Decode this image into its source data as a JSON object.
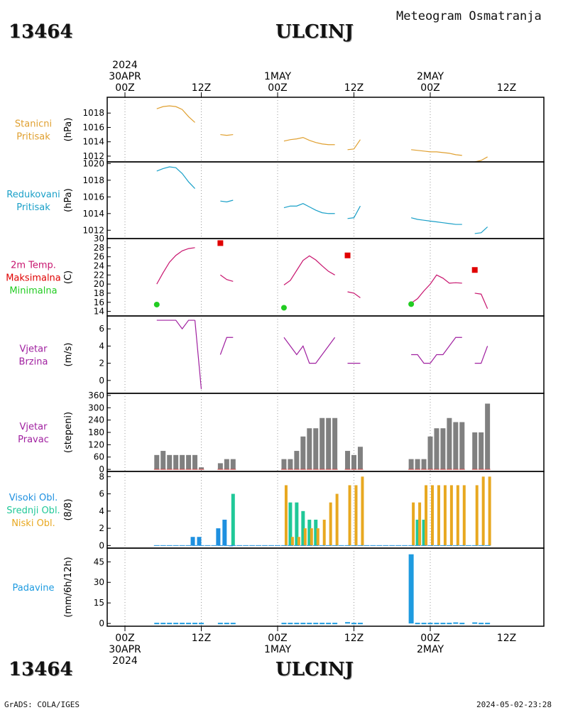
{
  "header": {
    "station_id": "13464",
    "city": "ULCINJ",
    "title": "Meteogram Osmatranja"
  },
  "footer": {
    "station_id": "13464",
    "city": "ULCINJ",
    "source": "GrADS: COLA/IGES",
    "timestamp": "2024-05-02-23:28"
  },
  "colors": {
    "station_pressure": "#e0a030",
    "reduced_pressure": "#1aa0c8",
    "tmax": "#e00000",
    "tmin": "#22cc22",
    "temp_line": "#c8146e",
    "wind": "#a020a0",
    "direction_bars": "#808080",
    "high_clouds": "#1e90e0",
    "mid_clouds": "#20c898",
    "low_clouds": "#e8a820",
    "precip": "#1e9be0"
  },
  "chart_data": [
    {
      "type": "line",
      "panel": "station_pressure",
      "label_lines": [
        "Stanicni",
        "Pritisak"
      ],
      "ylabel": "(hPa)",
      "ylim": [
        1011.2,
        1020.2
      ],
      "ticks": [
        1012,
        1014,
        1016,
        1018
      ],
      "x_unit": "hours since 30APR 00Z",
      "segments": [
        {
          "x": [
            5,
            6,
            7,
            8,
            9,
            10,
            11
          ],
          "y": [
            1018.6,
            1018.9,
            1019.0,
            1018.9,
            1018.5,
            1017.5,
            1016.7
          ]
        },
        {
          "x": [
            15,
            16,
            17
          ],
          "y": [
            1015.0,
            1014.9,
            1015.0
          ]
        },
        {
          "x": [
            25,
            26,
            27,
            28,
            29,
            30,
            31,
            32,
            33
          ],
          "y": [
            1014.1,
            1014.3,
            1014.4,
            1014.6,
            1014.2,
            1013.9,
            1013.7,
            1013.6,
            1013.6
          ]
        },
        {
          "x": [
            35,
            36,
            37
          ],
          "y": [
            1012.9,
            1013.0,
            1014.3
          ]
        },
        {
          "x": [
            45,
            46,
            47,
            48,
            49,
            50,
            51,
            52,
            53
          ],
          "y": [
            1012.9,
            1012.8,
            1012.7,
            1012.6,
            1012.6,
            1012.5,
            1012.4,
            1012.2,
            1012.1
          ]
        },
        {
          "x": [
            55,
            56,
            57
          ],
          "y": [
            1011.2,
            1011.4,
            1011.9
          ]
        }
      ]
    },
    {
      "type": "line",
      "panel": "reduced_pressure",
      "label_lines": [
        "Redukovani",
        "Pritisak"
      ],
      "ylabel": "(hPa)",
      "ylim": [
        1011.0,
        1020.2
      ],
      "ticks": [
        1012,
        1014,
        1016,
        1018,
        1020
      ],
      "x_unit": "hours since 30APR 00Z",
      "segments": [
        {
          "x": [
            5,
            6,
            7,
            8,
            9,
            10,
            11
          ],
          "y": [
            1019.1,
            1019.4,
            1019.6,
            1019.5,
            1018.8,
            1017.8,
            1017.0
          ]
        },
        {
          "x": [
            15,
            16,
            17
          ],
          "y": [
            1015.5,
            1015.4,
            1015.6
          ]
        },
        {
          "x": [
            25,
            26,
            27,
            28,
            29,
            30,
            31,
            32,
            33
          ],
          "y": [
            1014.7,
            1014.9,
            1014.9,
            1015.2,
            1014.8,
            1014.4,
            1014.1,
            1014.0,
            1014.0
          ]
        },
        {
          "x": [
            35,
            36,
            37
          ],
          "y": [
            1013.4,
            1013.5,
            1014.9
          ]
        },
        {
          "x": [
            45,
            46,
            47,
            48,
            49,
            50,
            51,
            52,
            53
          ],
          "y": [
            1013.5,
            1013.3,
            1013.2,
            1013.1,
            1013.0,
            1012.9,
            1012.8,
            1012.7,
            1012.7
          ]
        },
        {
          "x": [
            55,
            56,
            57
          ],
          "y": [
            1011.6,
            1011.7,
            1012.4
          ]
        }
      ]
    },
    {
      "type": "line",
      "panel": "temperature",
      "label_lines": [
        "2m Temp.",
        "Maksimalna",
        "Minimalna"
      ],
      "ylabel": "(C)",
      "ylim": [
        13,
        30
      ],
      "ticks": [
        14,
        16,
        18,
        20,
        22,
        24,
        26,
        28,
        30
      ],
      "x_unit": "hours since 30APR 00Z",
      "segments": [
        {
          "x": [
            5,
            6,
            7,
            8,
            9,
            10,
            11
          ],
          "y": [
            20.0,
            22.5,
            24.8,
            26.3,
            27.3,
            27.8,
            28.0
          ]
        },
        {
          "x": [
            15,
            16,
            17
          ],
          "y": [
            22.0,
            21.0,
            20.6
          ]
        },
        {
          "x": [
            25,
            26,
            27,
            28,
            29,
            30,
            31,
            32,
            33
          ],
          "y": [
            19.8,
            20.8,
            23.0,
            25.2,
            26.2,
            25.3,
            24.0,
            22.8,
            22.0
          ]
        },
        {
          "x": [
            35,
            36,
            37
          ],
          "y": [
            18.3,
            18.0,
            17.0
          ]
        },
        {
          "x": [
            45,
            46,
            47,
            48,
            49,
            50,
            51,
            52,
            53
          ],
          "y": [
            15.8,
            16.8,
            18.5,
            20.0,
            22.0,
            21.3,
            20.2,
            20.3,
            20.2
          ]
        },
        {
          "x": [
            55,
            56,
            57
          ],
          "y": [
            18.0,
            17.8,
            14.6
          ]
        }
      ],
      "tmax": [
        {
          "x": 15,
          "y": 29.0
        },
        {
          "x": 35,
          "y": 26.3
        },
        {
          "x": 55,
          "y": 23.1
        }
      ],
      "tmin": [
        {
          "x": 5,
          "y": 15.5
        },
        {
          "x": 25,
          "y": 14.8
        },
        {
          "x": 45,
          "y": 15.6
        }
      ]
    },
    {
      "type": "line",
      "panel": "wind_speed",
      "label_lines": [
        "Vjetar",
        "Brzina"
      ],
      "ylabel": "(m/s)",
      "ylim": [
        -1.5,
        7.5
      ],
      "ticks": [
        0,
        2,
        4,
        6
      ],
      "x_unit": "hours since 30APR 00Z",
      "segments": [
        {
          "x": [
            5,
            6,
            7,
            8,
            9,
            10,
            11
          ],
          "y": [
            7,
            7,
            7,
            7,
            6,
            7,
            7
          ]
        },
        {
          "x": [
            11,
            12
          ],
          "y": [
            7,
            -1
          ]
        },
        {
          "x": [
            15,
            16,
            17
          ],
          "y": [
            3,
            5,
            5
          ]
        },
        {
          "x": [
            25,
            26,
            27,
            28,
            29,
            30,
            31,
            32,
            33
          ],
          "y": [
            5,
            4,
            3,
            4,
            2,
            2,
            3,
            4,
            5
          ]
        },
        {
          "x": [
            35,
            36,
            37
          ],
          "y": [
            2,
            2,
            2
          ]
        },
        {
          "x": [
            45,
            46,
            47,
            48,
            49,
            50,
            51,
            52,
            53
          ],
          "y": [
            3,
            3,
            2,
            2,
            3,
            3,
            4,
            5,
            5
          ]
        },
        {
          "x": [
            55,
            56,
            57
          ],
          "y": [
            2,
            2,
            4
          ]
        }
      ]
    },
    {
      "type": "bar",
      "panel": "wind_direction",
      "label_lines": [
        "Vjetar",
        "Pravac"
      ],
      "ylabel": "(stepeni)",
      "ylim": [
        -10,
        370
      ],
      "ticks": [
        0,
        60,
        120,
        180,
        240,
        300,
        360
      ],
      "x_unit": "hours since 30APR 00Z",
      "x": [
        5,
        6,
        7,
        8,
        9,
        10,
        11,
        12,
        15,
        16,
        17,
        25,
        26,
        27,
        28,
        29,
        30,
        31,
        32,
        33,
        35,
        36,
        37,
        45,
        46,
        47,
        48,
        49,
        50,
        51,
        52,
        53,
        55,
        56,
        57
      ],
      "values": [
        70,
        90,
        70,
        70,
        70,
        70,
        70,
        10,
        30,
        50,
        50,
        50,
        50,
        90,
        160,
        200,
        200,
        250,
        250,
        250,
        90,
        70,
        110,
        50,
        50,
        50,
        160,
        200,
        200,
        250,
        230,
        230,
        180,
        180,
        320
      ]
    },
    {
      "type": "bar",
      "panel": "clouds",
      "label_lines": [
        "Visoki Obl.",
        "Srednji Obl.",
        "Niski Obl."
      ],
      "ylabel": "(8/8)",
      "ylim": [
        -0.3,
        8.6
      ],
      "ticks": [
        0,
        2,
        4,
        6,
        8
      ],
      "x_unit": "hours since 30APR 00Z",
      "series": [
        {
          "key": "high",
          "x": [
            11,
            12,
            15,
            16,
            17
          ],
          "values": [
            1,
            1,
            2,
            3,
            0
          ]
        },
        {
          "key": "mid",
          "x": [
            17,
            26,
            27,
            28,
            29,
            30,
            46,
            47
          ],
          "values": [
            6,
            5,
            5,
            4,
            3,
            3,
            3,
            3
          ]
        },
        {
          "key": "low",
          "x": [
            25,
            26,
            27,
            28,
            29,
            30,
            31,
            32,
            33,
            35,
            36,
            37,
            45,
            46,
            47,
            48,
            49,
            50,
            51,
            52,
            53,
            55,
            56,
            57
          ],
          "values": [
            7,
            1,
            1,
            2,
            2,
            2,
            3,
            5,
            6,
            7,
            7,
            8,
            5,
            5,
            7,
            7,
            7,
            7,
            7,
            7,
            7,
            7,
            8,
            8
          ]
        }
      ]
    },
    {
      "type": "bar",
      "panel": "precipitation",
      "label_lines": [
        "Padavine"
      ],
      "ylabel": "(mm/6h/12h)",
      "ylim": [
        -2,
        55
      ],
      "ticks": [
        0,
        15,
        30,
        45
      ],
      "x_unit": "hours since 30APR 00Z",
      "x": [
        5,
        6,
        7,
        8,
        9,
        10,
        11,
        12,
        15,
        16,
        17,
        25,
        26,
        27,
        28,
        29,
        30,
        31,
        32,
        33,
        35,
        36,
        37,
        45,
        46,
        47,
        48,
        49,
        50,
        51,
        52,
        53,
        55,
        56,
        57
      ],
      "values": [
        0.5,
        0.5,
        0.5,
        0.5,
        0.5,
        0.5,
        0.5,
        0.5,
        0.5,
        0.5,
        0.5,
        0.5,
        0.5,
        0.5,
        0.5,
        0.5,
        0.5,
        0.5,
        0.5,
        0.5,
        1.0,
        0.5,
        0.5,
        50.5,
        0.5,
        0.5,
        0.5,
        0.5,
        0.5,
        0.5,
        0.8,
        0.5,
        0.8,
        0.5,
        0.5
      ]
    }
  ],
  "x_axis": {
    "ticks_hours": [
      0,
      12,
      24,
      36,
      48
    ],
    "top_labels": [
      {
        "hour": 0,
        "lines": [
          "2024",
          "30APR",
          "00Z"
        ]
      },
      {
        "hour": 12,
        "lines": [
          "12Z"
        ]
      },
      {
        "hour": 24,
        "lines": [
          "1MAY",
          "00Z"
        ]
      },
      {
        "hour": 36,
        "lines": [
          "12Z"
        ]
      },
      {
        "hour": 48,
        "lines": [
          "2MAY",
          "00Z"
        ]
      },
      {
        "hour": 60,
        "lines": [
          "12Z"
        ]
      }
    ],
    "bottom_labels": [
      {
        "hour": 0,
        "lines": [
          "00Z",
          "30APR",
          "2024"
        ]
      },
      {
        "hour": 12,
        "lines": [
          "12Z"
        ]
      },
      {
        "hour": 24,
        "lines": [
          "00Z",
          "1MAY"
        ]
      },
      {
        "hour": 36,
        "lines": [
          "12Z"
        ]
      },
      {
        "hour": 48,
        "lines": [
          "00Z",
          "2MAY"
        ]
      },
      {
        "hour": 60,
        "lines": [
          "12Z"
        ]
      }
    ]
  }
}
